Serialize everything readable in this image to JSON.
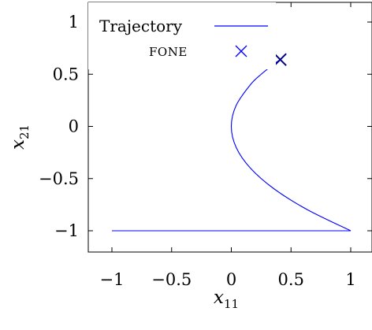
{
  "chart_data": {
    "type": "line",
    "xlabel": "x",
    "xlabel_sub": "11",
    "ylabel": "x",
    "ylabel_sub": "21",
    "xlim": [
      -1.2,
      1.2
    ],
    "ylim": [
      -1.2,
      1.2
    ],
    "xticks": [
      -1,
      -0.5,
      0,
      0.5,
      1
    ],
    "xtick_labels": [
      "−1",
      "−0.5",
      "0",
      "0.5",
      "1"
    ],
    "yticks": [
      -1,
      -0.5,
      0,
      0.5,
      1
    ],
    "ytick_labels": [
      "−1",
      "−0.5",
      "0",
      "0.5",
      "1"
    ],
    "grid": false,
    "legend_position": "top-left",
    "series": [
      {
        "name": "Trajectory",
        "kind": "line",
        "color": "#0000ff",
        "x": [
          -1,
          1,
          0.64,
          0.36,
          0.16,
          0.04,
          0,
          0.04,
          0.16,
          0.25,
          0.36,
          0.41
        ],
        "y": [
          -1,
          -1,
          -0.8,
          -0.6,
          -0.4,
          -0.2,
          0,
          0.2,
          0.4,
          0.5,
          0.6,
          0.64
        ]
      },
      {
        "name": "FONE",
        "kind": "marker",
        "color": "#0000ff",
        "marker": "x",
        "x": [
          0.41
        ],
        "y": [
          0.64
        ]
      }
    ]
  }
}
